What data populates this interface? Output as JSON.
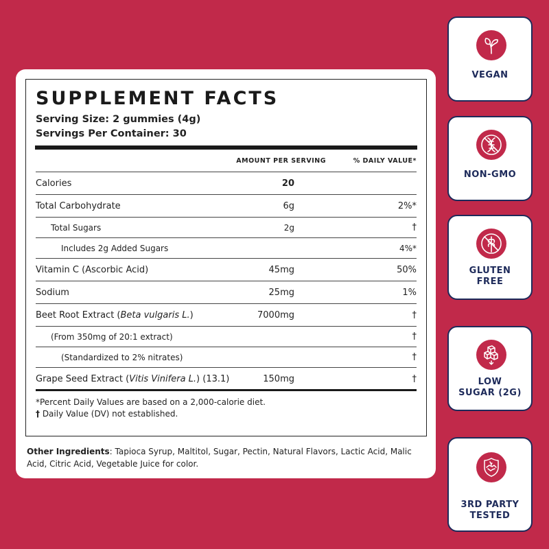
{
  "facts": {
    "title": "SUPPLEMENT FACTS",
    "serving_size": "Serving Size: 2 gummies (4g)",
    "servings_per_container": "Servings Per Container: 30",
    "col_amount": "AMOUNT PER SERVING",
    "col_dv": "% DAILY VALUE*",
    "rows": [
      {
        "name": "Calories",
        "amount": "20",
        "dv": ""
      },
      {
        "name": "Total Carbohydrate",
        "amount": "6g",
        "dv": "2%*"
      },
      {
        "name": "Total Sugars",
        "amount": "2g",
        "dv": "†"
      },
      {
        "name": "Includes 2g Added Sugars",
        "amount": "",
        "dv": "4%*"
      },
      {
        "name": "Vitamin C (Ascorbic Acid)",
        "amount": "45mg",
        "dv": "50%"
      },
      {
        "name": "Sodium",
        "amount": "25mg",
        "dv": "1%"
      },
      {
        "name": "Beet Root Extract (",
        "name_italic": "Beta vulgaris L.",
        "name_end": ")",
        "amount": "7000mg",
        "dv": "†"
      },
      {
        "name": "(From 350mg of 20:1 extract)",
        "amount": "",
        "dv": "†"
      },
      {
        "name": "(Standardized to 2% nitrates)",
        "amount": "",
        "dv": "†"
      },
      {
        "name": "Grape Seed Extract (",
        "name_italic": "Vitis Vinifera L.",
        "name_end": ") (13.1)",
        "amount": "150mg",
        "dv": "†"
      }
    ],
    "note1": "*Percent Daily Values are based on a 2,000-calorie diet.",
    "note2_dagger": "†",
    "note2": " Daily Value (DV) not established."
  },
  "other": {
    "label": "Other Ingredients",
    "text": ": Tapioca Syrup, Maltitol, Sugar, Pectin, Natural Flavors, Lactic Acid, Malic Acid, Citric Acid, Vegetable Juice for color."
  },
  "badges": [
    {
      "label": "VEGAN",
      "icon": "sprout-icon"
    },
    {
      "label": "NON-GMO",
      "icon": "dna-crossed-icon"
    },
    {
      "label_1": "GLUTEN",
      "label_2": "FREE",
      "icon": "wheat-crossed-icon"
    },
    {
      "label_1": "LOW",
      "label_2": "SUGAR (2G)",
      "icon": "sugar-cubes-icon"
    },
    {
      "label_1": "3RD PARTY",
      "label_2": "TESTED",
      "icon": "shield-handshake-icon"
    }
  ],
  "colors": {
    "background": "#c1294a",
    "badge_text": "#1d2a5a"
  }
}
